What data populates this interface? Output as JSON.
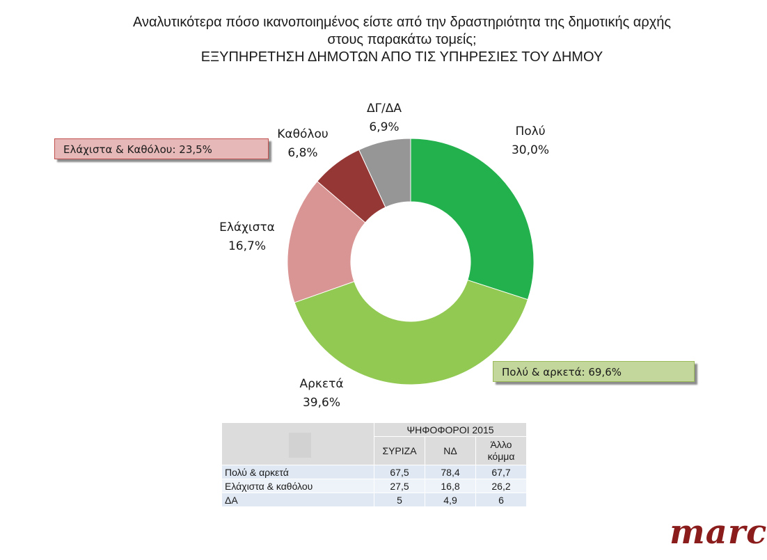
{
  "title": {
    "line1": "Αναλυτικότερα πόσο ικανοποιημένος είστε από την δραστηριότητα της δημοτικής αρχής",
    "line2": "στους παρακάτω τομείς;",
    "line3": "ΕΞΥΠΗΡΕΤΗΣΗ ΔΗΜΟΤΩΝ ΑΠΟ ΤΙΣ ΥΠΗΡΕΣΙΕΣ ΤΟΥ ΔΗΜΟΥ"
  },
  "chart_data": {
    "type": "pie",
    "variant": "donut",
    "start_angle_deg": 0,
    "direction": "clockwise",
    "slices": [
      {
        "label": "Πολύ",
        "value": 30.0,
        "value_label": "30,0%",
        "color": "#22b14c"
      },
      {
        "label": "Αρκετά",
        "value": 39.6,
        "value_label": "39,6%",
        "color": "#92c952"
      },
      {
        "label": "Ελάχιστα",
        "value": 16.7,
        "value_label": "16,7%",
        "color": "#d99594"
      },
      {
        "label": "Καθόλου",
        "value": 6.8,
        "value_label": "6,8%",
        "color": "#953735"
      },
      {
        "label": "ΔΓ/ΔΑ",
        "value": 6.9,
        "value_label": "6,9%",
        "color": "#969696"
      }
    ],
    "annotations": [
      {
        "text": "Ελάχιστα & Καθόλου: 23,5%",
        "color": "#e6b9b8"
      },
      {
        "text": "Πολύ & αρκετά: 69,6%",
        "color": "#c3d69b"
      }
    ]
  },
  "table": {
    "group_header": "ΨΗΦΟΦΟΡΟΙ 2015",
    "columns": [
      "ΣΥΡΙΖΑ",
      "ΝΔ",
      "Άλλο κόμμα"
    ],
    "rows": [
      {
        "label": "Πολύ & αρκετά",
        "values": [
          "67,5",
          "78,4",
          "67,7"
        ]
      },
      {
        "label": "Ελάχιστα & καθόλου",
        "values": [
          "27,5",
          "16,8",
          "26,2"
        ]
      },
      {
        "label": "ΔΑ",
        "values": [
          "5",
          "4,9",
          "6"
        ]
      }
    ]
  },
  "logo": "marc"
}
